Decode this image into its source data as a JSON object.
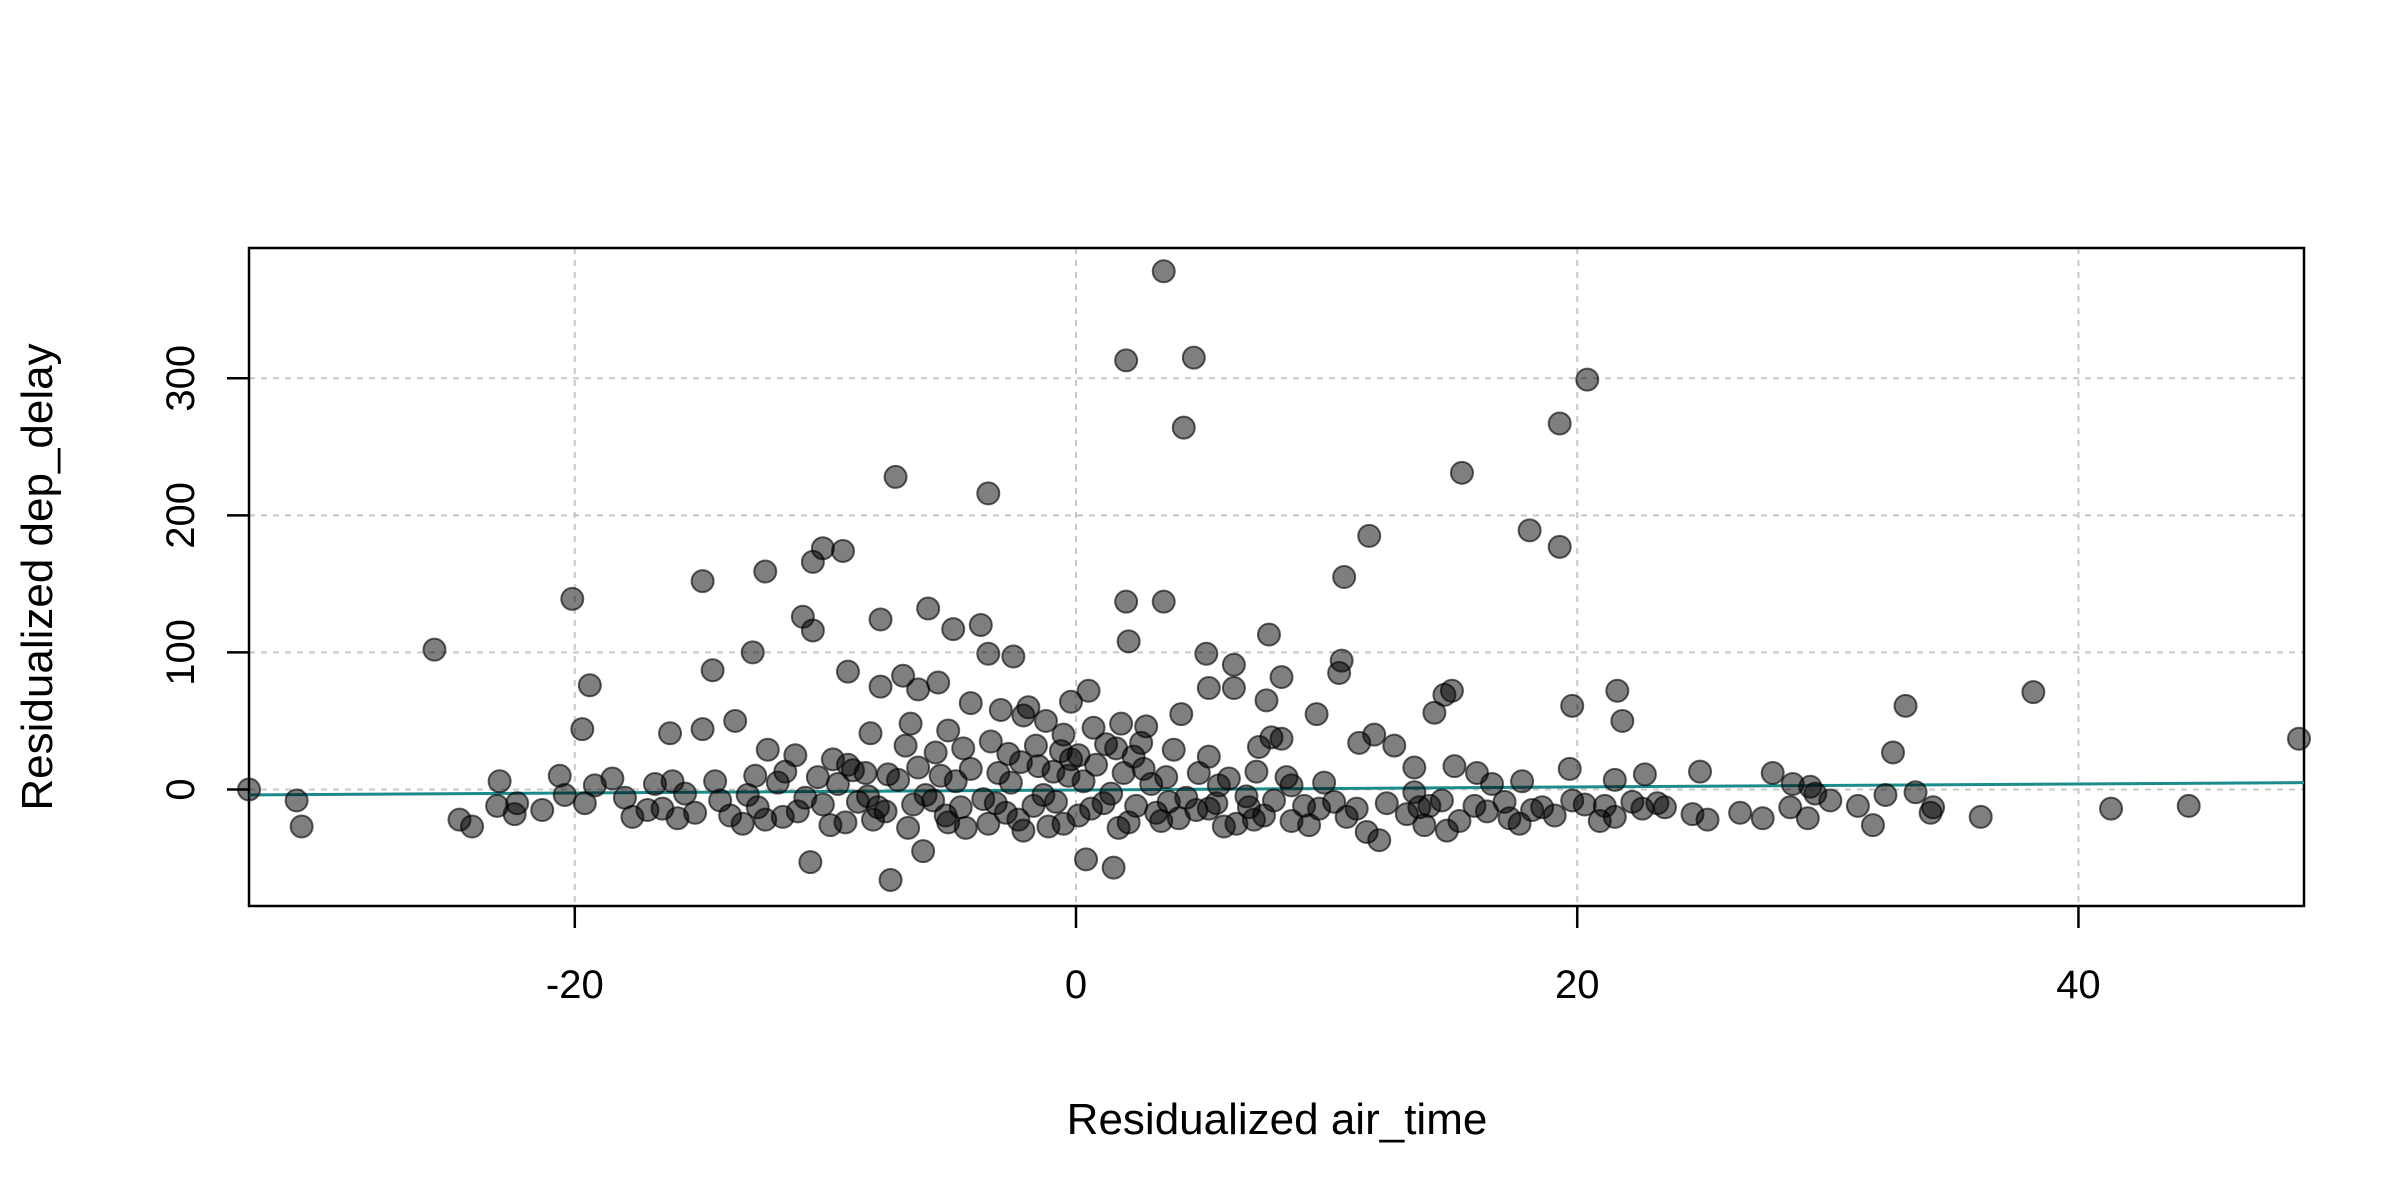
{
  "chart_data": {
    "type": "scatter",
    "xlabel": "Residualized air_time",
    "ylabel": "Residualized dep_delay",
    "xlim": [
      -33,
      49
    ],
    "ylim": [
      -85,
      395
    ],
    "grid": true,
    "x_ticks": [
      -20,
      0,
      20,
      40
    ],
    "y_ticks": [
      0,
      100,
      200,
      300
    ],
    "x_tick_labels": [
      "-20",
      "0",
      "20",
      "40"
    ],
    "y_tick_labels": [
      "0",
      "100",
      "200",
      "300"
    ],
    "colors": {
      "points": "#000000",
      "fit_line": "#1b8b8c"
    },
    "fit_line": {
      "x": [
        -33,
        49
      ],
      "y": [
        -4,
        5
      ]
    },
    "points": [
      [
        3.5,
        378
      ],
      [
        2,
        313
      ],
      [
        4.7,
        315
      ],
      [
        4.3,
        264
      ],
      [
        20.4,
        299
      ],
      [
        19.3,
        267
      ],
      [
        15.4,
        231
      ],
      [
        18.1,
        189
      ],
      [
        19.3,
        177
      ],
      [
        11.7,
        185
      ],
      [
        10.7,
        155
      ],
      [
        -7.2,
        228
      ],
      [
        -3.5,
        216
      ],
      [
        -10.1,
        176
      ],
      [
        -9.3,
        174
      ],
      [
        -10.5,
        166
      ],
      [
        -12.4,
        159
      ],
      [
        -14.9,
        152
      ],
      [
        -20.1,
        139
      ],
      [
        -25.6,
        102
      ],
      [
        -5.9,
        132
      ],
      [
        2,
        137
      ],
      [
        3.5,
        137
      ],
      [
        -10.9,
        126
      ],
      [
        -7.8,
        124
      ],
      [
        -10.5,
        116
      ],
      [
        -4.9,
        117
      ],
      [
        -3.8,
        120
      ],
      [
        2.1,
        108
      ],
      [
        7.7,
        113
      ],
      [
        -12.9,
        100
      ],
      [
        -3.5,
        99
      ],
      [
        -2.5,
        97
      ],
      [
        5.2,
        99
      ],
      [
        10.6,
        94
      ],
      [
        10.5,
        85
      ],
      [
        6.3,
        91
      ],
      [
        8.2,
        82
      ],
      [
        -9.1,
        86
      ],
      [
        -14.5,
        87
      ],
      [
        -19.4,
        76
      ],
      [
        -7.8,
        75
      ],
      [
        -5.5,
        78
      ],
      [
        -6.9,
        83
      ],
      [
        -6.3,
        73
      ],
      [
        0.5,
        72
      ],
      [
        5.3,
        74
      ],
      [
        6.3,
        74
      ],
      [
        15,
        72
      ],
      [
        14.7,
        69
      ],
      [
        21.6,
        72
      ],
      [
        33.1,
        61
      ],
      [
        38.2,
        71
      ],
      [
        48.8,
        37
      ],
      [
        19.8,
        61
      ],
      [
        21.8,
        50
      ],
      [
        14.3,
        56
      ],
      [
        9.6,
        55
      ],
      [
        4.2,
        55
      ],
      [
        7.6,
        65
      ],
      [
        11.9,
        40
      ],
      [
        11.3,
        34
      ],
      [
        -13.6,
        50
      ],
      [
        -19.7,
        44
      ],
      [
        -16.2,
        41
      ],
      [
        -14.9,
        44
      ],
      [
        -8.2,
        41
      ],
      [
        -6.6,
        48
      ],
      [
        -5.1,
        43
      ],
      [
        -1.2,
        50
      ],
      [
        0.7,
        45
      ],
      [
        1.8,
        48
      ],
      [
        2.8,
        46
      ],
      [
        -3,
        58
      ],
      [
        -1.9,
        60
      ],
      [
        -0.2,
        64
      ],
      [
        -4.2,
        63
      ],
      [
        -2.1,
        54
      ],
      [
        -0.5,
        40
      ],
      [
        32.6,
        27
      ],
      [
        7.8,
        38
      ],
      [
        8.2,
        37
      ],
      [
        7.3,
        31
      ],
      [
        2.6,
        34
      ],
      [
        1.6,
        30
      ],
      [
        3.9,
        29
      ],
      [
        5.3,
        24
      ],
      [
        12.7,
        32
      ],
      [
        15.1,
        17
      ],
      [
        16,
        12
      ],
      [
        13.5,
        16
      ],
      [
        -12.3,
        29
      ],
      [
        -11.2,
        25
      ],
      [
        -9.7,
        22
      ],
      [
        -9.1,
        18
      ],
      [
        -8.4,
        12
      ],
      [
        -16.1,
        6
      ],
      [
        -18.5,
        8
      ],
      [
        -20.6,
        10
      ],
      [
        -23,
        6
      ],
      [
        -33,
        0
      ],
      [
        -31.1,
        -8
      ],
      [
        -30.9,
        -27
      ],
      [
        -24.1,
        -27
      ],
      [
        -23.1,
        -12
      ],
      [
        -22.4,
        -18
      ],
      [
        -21.3,
        -15
      ],
      [
        -19.6,
        -10
      ],
      [
        -17.7,
        -20
      ],
      [
        -16.5,
        -14
      ],
      [
        -15.2,
        -17
      ],
      [
        -13.8,
        -19
      ],
      [
        -12.4,
        -22
      ],
      [
        -11.1,
        -16
      ],
      [
        -10.6,
        -53
      ],
      [
        -9.2,
        -24
      ],
      [
        -7.9,
        -13
      ],
      [
        -7.4,
        -66
      ],
      [
        -6.1,
        -45
      ],
      [
        -5.2,
        -19
      ],
      [
        -4.4,
        -28
      ],
      [
        -3.5,
        -25
      ],
      [
        -2.3,
        -22
      ],
      [
        -1.1,
        -27
      ],
      [
        0.1,
        -19
      ],
      [
        0.4,
        -51
      ],
      [
        1.5,
        -57
      ],
      [
        2.1,
        -24
      ],
      [
        3.2,
        -17
      ],
      [
        4.1,
        -21
      ],
      [
        5.3,
        -14
      ],
      [
        6.4,
        -25
      ],
      [
        7.5,
        -19
      ],
      [
        8.6,
        -23
      ],
      [
        9.7,
        -14
      ],
      [
        10.8,
        -20
      ],
      [
        11.6,
        -31
      ],
      [
        12.1,
        -37
      ],
      [
        13.2,
        -18
      ],
      [
        14.1,
        -12
      ],
      [
        15.3,
        -23
      ],
      [
        16.4,
        -16
      ],
      [
        17.3,
        -21
      ],
      [
        18.2,
        -15
      ],
      [
        19.1,
        -19
      ],
      [
        20.3,
        -11
      ],
      [
        21.5,
        -20
      ],
      [
        22.6,
        -14
      ],
      [
        23.2,
        -10
      ],
      [
        24.6,
        -18
      ],
      [
        24.9,
        13
      ],
      [
        25.2,
        -22
      ],
      [
        26.5,
        -17
      ],
      [
        27.4,
        -21
      ],
      [
        27.8,
        12
      ],
      [
        28.5,
        -13
      ],
      [
        29.2,
        -21
      ],
      [
        29.5,
        -3
      ],
      [
        30.1,
        -8
      ],
      [
        31.2,
        -12
      ],
      [
        31.8,
        -26
      ],
      [
        32.3,
        -4
      ],
      [
        33.5,
        -2
      ],
      [
        34.1,
        -17
      ],
      [
        34.2,
        -13
      ],
      [
        36.1,
        -20
      ],
      [
        41.3,
        -14
      ],
      [
        44.4,
        -12
      ],
      [
        28.6,
        4
      ],
      [
        29.3,
        2
      ],
      [
        22.7,
        11
      ],
      [
        21.5,
        7
      ],
      [
        19.7,
        15
      ],
      [
        17.8,
        6
      ],
      [
        16.6,
        4
      ],
      [
        13.5,
        -2
      ],
      [
        9.9,
        5
      ],
      [
        8.6,
        3
      ],
      [
        6.8,
        -5
      ],
      [
        5.7,
        3
      ],
      [
        4.4,
        -6
      ],
      [
        3,
        4
      ],
      [
        1.4,
        -3
      ],
      [
        0.3,
        6
      ],
      [
        -1.3,
        -4
      ],
      [
        -2.6,
        5
      ],
      [
        -3.7,
        -7
      ],
      [
        -4.8,
        6
      ],
      [
        -6,
        -4
      ],
      [
        -7.1,
        7
      ],
      [
        -8.3,
        -5
      ],
      [
        -9.5,
        4
      ],
      [
        -10.8,
        -6
      ],
      [
        -11.9,
        5
      ],
      [
        -13.1,
        -4
      ],
      [
        -14.4,
        6
      ],
      [
        -15.6,
        -3
      ],
      [
        -16.8,
        4
      ],
      [
        -18,
        -6
      ],
      [
        -19.2,
        3
      ],
      [
        -20.4,
        -4
      ],
      [
        -22.3,
        -10
      ],
      [
        -24.6,
        -22
      ],
      [
        -17.1,
        -15
      ],
      [
        -14.2,
        -8
      ],
      [
        -12.7,
        -13
      ],
      [
        -10.1,
        -11
      ],
      [
        -8.7,
        -9
      ],
      [
        -7.6,
        -16
      ],
      [
        -6.5,
        -11
      ],
      [
        -5.7,
        -8
      ],
      [
        -4.6,
        -13
      ],
      [
        -3.2,
        -10
      ],
      [
        -2.8,
        -17
      ],
      [
        -1.7,
        -12
      ],
      [
        -0.8,
        -9
      ],
      [
        0.6,
        -14
      ],
      [
        1.1,
        -10
      ],
      [
        2.4,
        -12
      ],
      [
        3.7,
        -9
      ],
      [
        4.8,
        -15
      ],
      [
        5.6,
        -10
      ],
      [
        6.9,
        -13
      ],
      [
        7.9,
        -8
      ],
      [
        9.1,
        -12
      ],
      [
        10.3,
        -9
      ],
      [
        11.2,
        -14
      ],
      [
        12.4,
        -10
      ],
      [
        13.7,
        -13
      ],
      [
        14.6,
        -8
      ],
      [
        15.9,
        -12
      ],
      [
        17.1,
        -9
      ],
      [
        18.6,
        -13
      ],
      [
        19.8,
        -8
      ],
      [
        21.1,
        -12
      ],
      [
        22.2,
        -9
      ],
      [
        23.5,
        -13
      ],
      [
        -1.5,
        17
      ],
      [
        -0.9,
        13
      ],
      [
        -2.2,
        20
      ],
      [
        -3.1,
        12
      ],
      [
        -0.3,
        10
      ],
      [
        0.8,
        18
      ],
      [
        1.9,
        12
      ],
      [
        -4.2,
        15
      ],
      [
        -5.4,
        10
      ],
      [
        -6.3,
        16
      ],
      [
        -7.5,
        11
      ],
      [
        -8.9,
        14
      ],
      [
        -10.3,
        9
      ],
      [
        -11.6,
        13
      ],
      [
        -12.8,
        10
      ],
      [
        2.7,
        15
      ],
      [
        3.6,
        9
      ],
      [
        4.9,
        12
      ],
      [
        6.1,
        8
      ],
      [
        7.2,
        13
      ],
      [
        8.4,
        9
      ],
      [
        -0.6,
        28
      ],
      [
        0.1,
        25
      ],
      [
        -1.6,
        32
      ],
      [
        -2.7,
        26
      ],
      [
        -3.4,
        35
      ],
      [
        -4.5,
        30
      ],
      [
        -5.6,
        27
      ],
      [
        -6.8,
        32
      ],
      [
        -0.2,
        22
      ],
      [
        1.2,
        33
      ],
      [
        2.3,
        24
      ],
      [
        -15.9,
        -21
      ],
      [
        -13.3,
        -25
      ],
      [
        -11.7,
        -20
      ],
      [
        -9.8,
        -26
      ],
      [
        -8.1,
        -22
      ],
      [
        -6.7,
        -28
      ],
      [
        -5.1,
        -24
      ],
      [
        -2.1,
        -30
      ],
      [
        -0.5,
        -25
      ],
      [
        1.7,
        -28
      ],
      [
        3.4,
        -23
      ],
      [
        5.9,
        -27
      ],
      [
        7.1,
        -22
      ],
      [
        9.3,
        -26
      ],
      [
        13.9,
        -26
      ],
      [
        14.8,
        -30
      ],
      [
        17.7,
        -25
      ],
      [
        20.9,
        -23
      ]
    ]
  }
}
